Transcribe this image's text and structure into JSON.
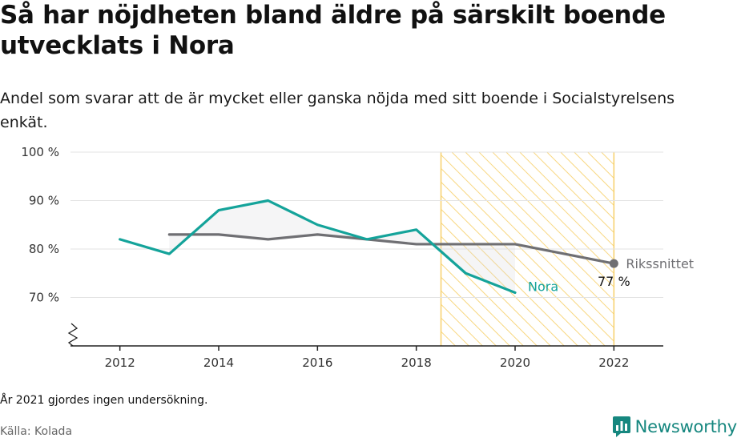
{
  "header": {
    "title": "Så har nöjdheten bland äldre på särskilt boende utvecklats i Nora",
    "subtitle": "Andel som svarar att de är mycket eller ganska nöjda med sitt boende i Socialstyrelsens enkät."
  },
  "chart_data": {
    "type": "line",
    "x_ticks": [
      2012,
      2014,
      2016,
      2018,
      2020,
      2022
    ],
    "y_ticks": [
      {
        "value": 70,
        "label": "70 %"
      },
      {
        "value": 80,
        "label": "80 %"
      },
      {
        "value": 90,
        "label": "90 %"
      },
      {
        "value": 100,
        "label": "100 %"
      }
    ],
    "xlim": [
      2011.0,
      2023.0
    ],
    "ylim": [
      60,
      100
    ],
    "y_axis_break": true,
    "grid": true,
    "highlight_period": [
      2018.5,
      2022
    ],
    "series": [
      {
        "name": "Nora",
        "color": "#14a39a",
        "x": [
          2012,
          2013,
          2014,
          2015,
          2016,
          2017,
          2018,
          2019,
          2020
        ],
        "y": [
          82,
          79,
          88,
          90,
          85,
          82,
          84,
          75,
          71
        ]
      },
      {
        "name": "Rikssnittet",
        "color": "#6f6f73",
        "x": [
          2013,
          2014,
          2015,
          2016,
          2017,
          2018,
          2019,
          2020,
          2022
        ],
        "y": [
          83,
          83,
          82,
          83,
          82,
          81,
          81,
          81,
          77
        ],
        "end_label": "77 %"
      }
    ]
  },
  "footer": {
    "note": "År 2021 gjordes ingen undersökning.",
    "source": "Källa: Kolada",
    "brand": "Newsworthy"
  },
  "colors": {
    "nora": "#14a39a",
    "riks": "#6f6f73",
    "highlight": "#f7d06a",
    "brand": "#16877f"
  }
}
